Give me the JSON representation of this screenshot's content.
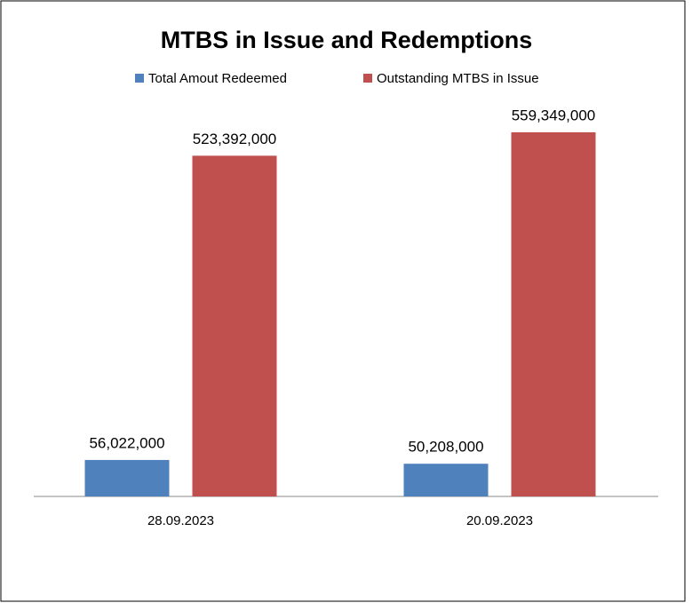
{
  "chart_data": {
    "type": "bar",
    "title": "MTBS in Issue and Redemptions",
    "categories": [
      "28.09.2023",
      "20.09.2023"
    ],
    "series": [
      {
        "name": "Total Amout Redeemed",
        "color": "#4f81bd",
        "values": [
          56022000,
          50208000
        ],
        "value_labels": [
          "56,022,000",
          "50,208,000"
        ]
      },
      {
        "name": "Outstanding MTBS in Issue",
        "color": "#c0504d",
        "values": [
          523392000,
          559349000
        ],
        "value_labels": [
          "523,392,000",
          "559,349,000"
        ]
      }
    ],
    "legend": "top"
  }
}
